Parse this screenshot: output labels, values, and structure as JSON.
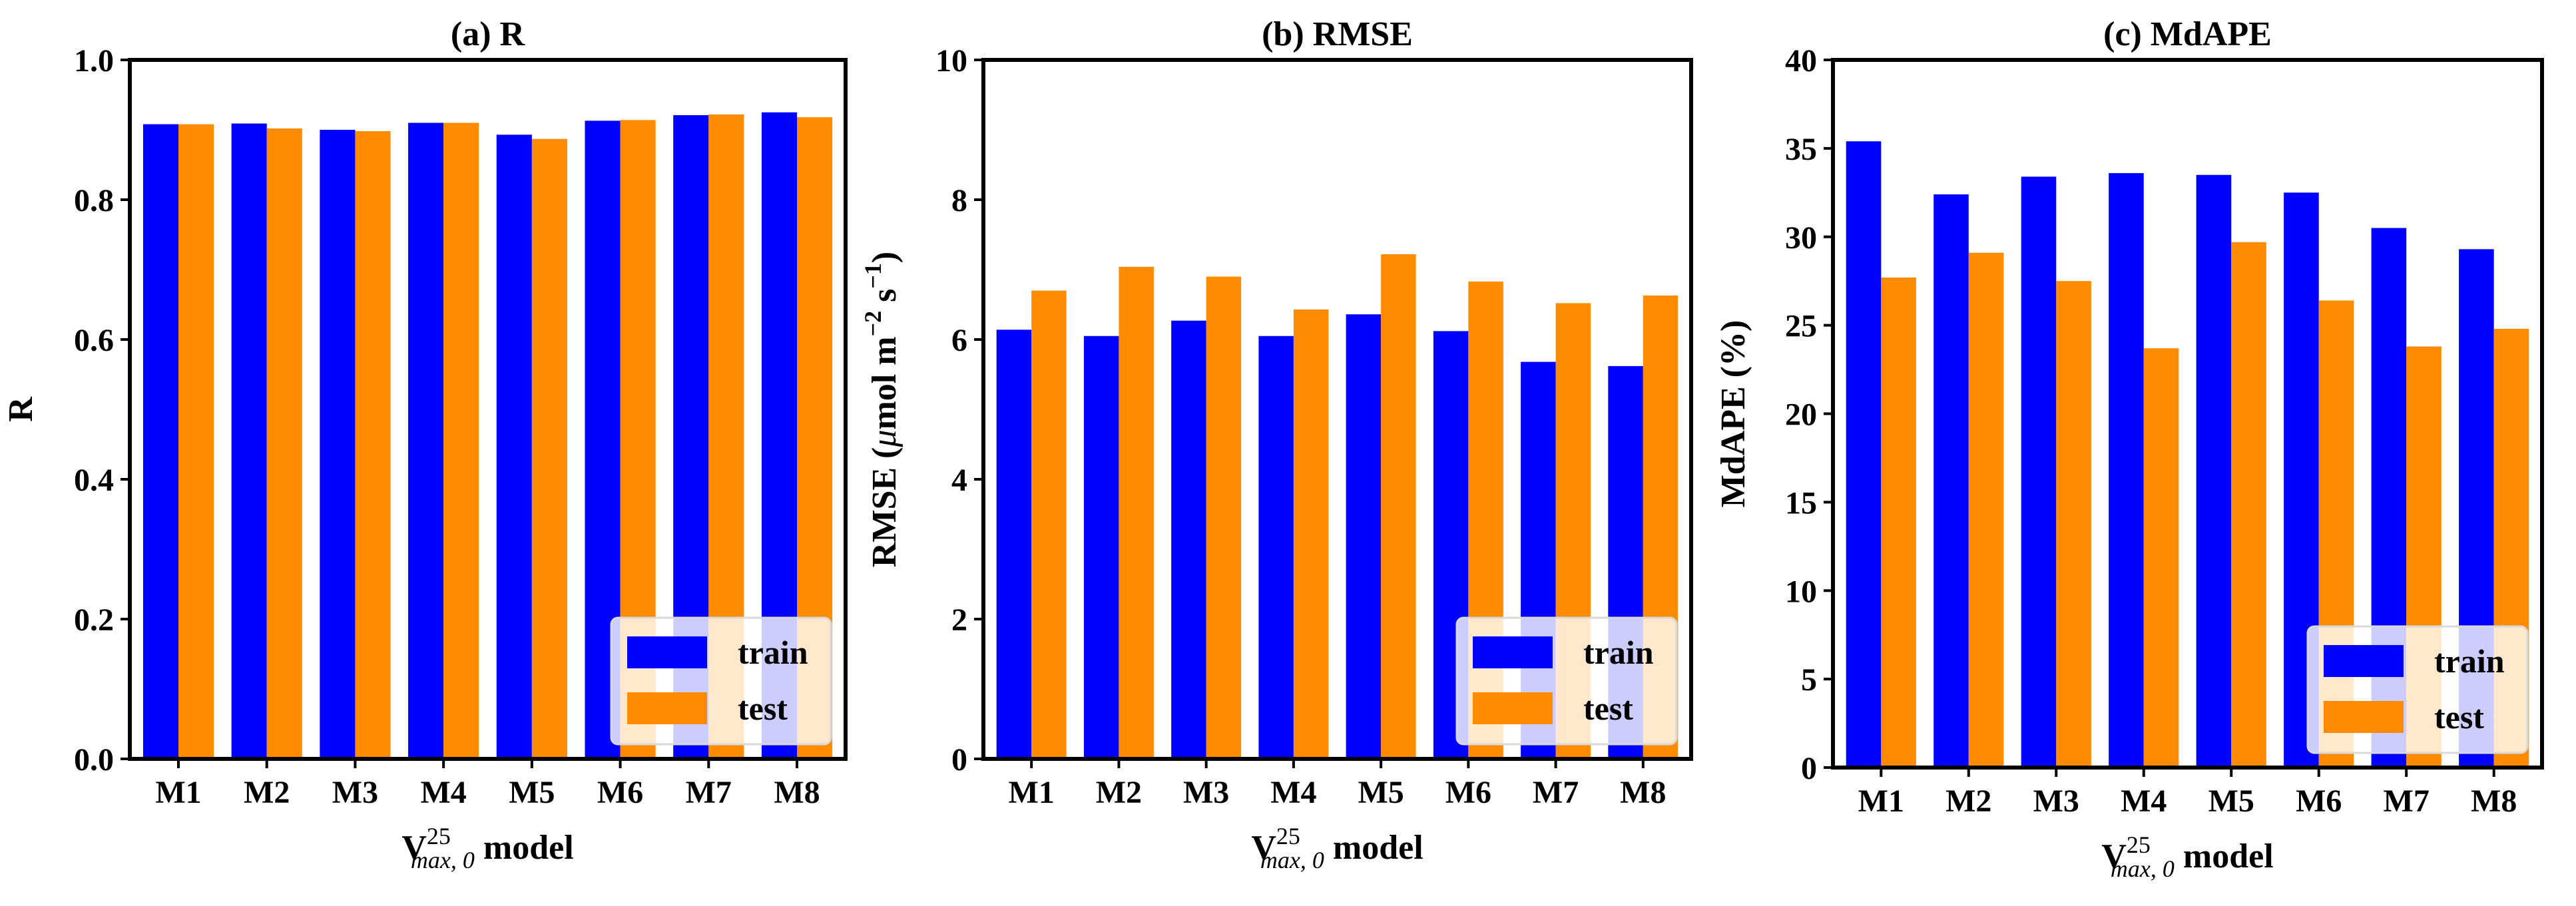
{
  "colors": {
    "train": "#0000ff",
    "test": "#ff8c00",
    "axis": "#000000"
  },
  "chart_data": [
    {
      "type": "bar",
      "title": "(a) R",
      "ylabel": "R",
      "xlabel": "V25max,0 model",
      "xlabel_parts": {
        "main": "V",
        "sup": "25",
        "sub": "max, 0",
        "rest": " model"
      },
      "categories": [
        "M1",
        "M2",
        "M3",
        "M4",
        "M5",
        "M6",
        "M7",
        "M8"
      ],
      "ylim": [
        0,
        1.0
      ],
      "yticks": [
        "0.0",
        "0.2",
        "0.4",
        "0.6",
        "0.8",
        "1.0"
      ],
      "series": [
        {
          "name": "train",
          "values": [
            0.908,
            0.909,
            0.9,
            0.91,
            0.893,
            0.913,
            0.921,
            0.925
          ]
        },
        {
          "name": "test",
          "values": [
            0.908,
            0.902,
            0.898,
            0.91,
            0.887,
            0.914,
            0.922,
            0.918
          ]
        }
      ],
      "legend": "lower-right"
    },
    {
      "type": "bar",
      "title": "(b) RMSE",
      "ylabel": "RMSE (μmol m−2 s−1)",
      "ylabel_parts": {
        "pre": "RMSE (",
        "mu": "μ",
        "mid": "mol m",
        "sup1": "−2",
        "mid2": " s",
        "sup2": "−1",
        "post": ")"
      },
      "xlabel": "V25max,0 model",
      "xlabel_parts": {
        "main": "V",
        "sup": "25",
        "sub": "max, 0",
        "rest": " model"
      },
      "categories": [
        "M1",
        "M2",
        "M3",
        "M4",
        "M5",
        "M6",
        "M7",
        "M8"
      ],
      "ylim": [
        0,
        10
      ],
      "yticks": [
        "0",
        "2",
        "4",
        "6",
        "8",
        "10"
      ],
      "series": [
        {
          "name": "train",
          "values": [
            6.14,
            6.05,
            6.27,
            6.05,
            6.36,
            6.12,
            5.68,
            5.62
          ]
        },
        {
          "name": "test",
          "values": [
            6.7,
            7.04,
            6.9,
            6.43,
            7.22,
            6.83,
            6.52,
            6.63
          ]
        }
      ],
      "legend": "lower-right"
    },
    {
      "type": "bar",
      "title": "(c) MdAPE",
      "ylabel": "MdAPE (%)",
      "xlabel": "V25max,0 model",
      "xlabel_parts": {
        "main": "V",
        "sup": "25",
        "sub": "max, 0",
        "rest": " model"
      },
      "categories": [
        "M1",
        "M2",
        "M3",
        "M4",
        "M5",
        "M6",
        "M7",
        "M8"
      ],
      "ylim": [
        0,
        40
      ],
      "yticks": [
        "0",
        "5",
        "10",
        "15",
        "20",
        "25",
        "30",
        "35",
        "40"
      ],
      "series": [
        {
          "name": "train",
          "values": [
            35.4,
            32.4,
            33.4,
            33.6,
            33.5,
            32.5,
            30.5,
            29.3
          ]
        },
        {
          "name": "test",
          "values": [
            27.7,
            29.1,
            27.5,
            23.7,
            29.7,
            26.4,
            23.8,
            24.8
          ]
        }
      ],
      "legend": "lower-right"
    }
  ]
}
